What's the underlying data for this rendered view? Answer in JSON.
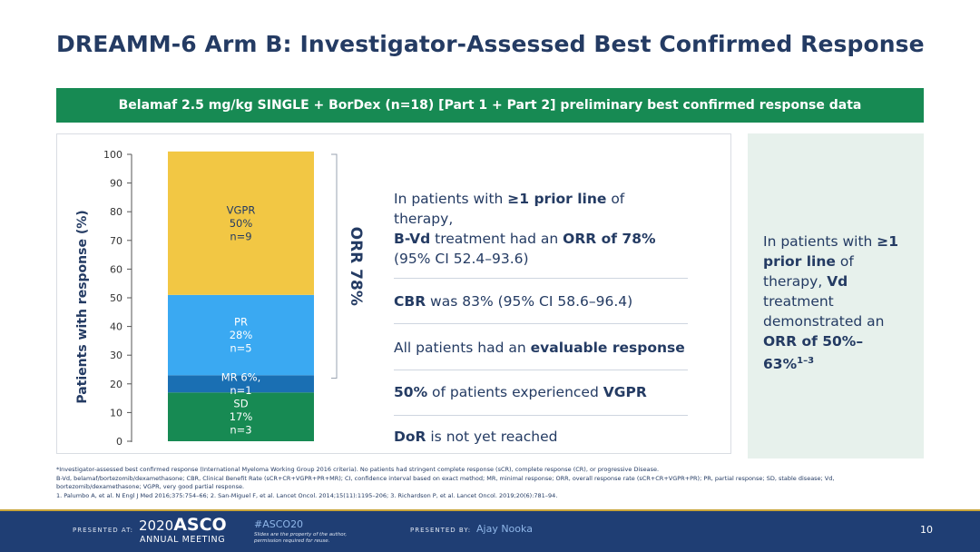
{
  "title": "DREAMM-6 Arm B: Investigator-Assessed Best Confirmed Response",
  "banner": "Belamaf 2.5 mg/kg SINGLE + BorDex (n=18) [Part 1 + Part 2] preliminary best confirmed response data",
  "chart_data": {
    "type": "bar",
    "stacked": true,
    "ylabel": "Patients with response (%)",
    "ylim": [
      0,
      100
    ],
    "yticks": [
      "0",
      "10",
      "20",
      "30",
      "40",
      "50",
      "60",
      "70",
      "80",
      "90",
      "100"
    ],
    "segments": [
      {
        "name": "SD",
        "value": 17,
        "color": "#178a53",
        "lines": [
          "SD",
          "17%",
          "n=3"
        ]
      },
      {
        "name": "MR",
        "value": 6,
        "color": "#1a6fb3",
        "lines": [
          "MR 6%,",
          "n=1"
        ]
      },
      {
        "name": "PR",
        "value": 28,
        "color": "#3aa9f2",
        "lines": [
          "PR",
          "28%",
          "n=5"
        ]
      },
      {
        "name": "VGPR",
        "value": 50,
        "color": "#f2c744",
        "lines": [
          "VGPR",
          "50%",
          "n=9"
        ]
      }
    ],
    "bracket": {
      "label": "ORR 78%",
      "from": 22,
      "to": 100
    }
  },
  "stats": [
    {
      "text": "In patients with ≥1 prior line of therapy, B-Vd treatment had an ORR of 78% (95% CI 52.4–93.6)"
    },
    {
      "text": "CBR was 83% (95% CI 58.6–96.4)"
    },
    {
      "text": "All patients had an evaluable response"
    },
    {
      "text": "50% of patients experienced VGPR"
    },
    {
      "text": "DoR is not yet reached"
    }
  ],
  "stat_parts": {
    "s1a": "In patients with ",
    "s1b": "≥1 prior line",
    "s1c": " of therapy,",
    "s1d": "B-Vd",
    "s1e": " treatment had an ",
    "s1f": "ORR of 78%",
    "s1g": "(95% CI 52.4–93.6)",
    "s2a": "CBR",
    "s2b": " was 83% (95% CI 58.6–96.4)",
    "s3a": "All patients had an ",
    "s3b": "evaluable response",
    "s4a": "50%",
    "s4b": " of patients experienced ",
    "s4c": "VGPR",
    "s5a": "DoR",
    "s5b": " is not yet reached"
  },
  "side": {
    "a": "In patients with ",
    "b": "≥1 prior line",
    "c": " of therapy, ",
    "d": "Vd",
    "e": " treatment demonstrated an ",
    "f": "ORR of 50%–63%",
    "sup": "1–3"
  },
  "footnotes": [
    "*Investigator-assessed best confirmed response (International Myeloma Working Group 2016 criteria). No patients had stringent complete response (sCR), complete response (CR), or progressive Disease.",
    "B-Vd, belamaf/bortezomib/dexamethasone; CBR, Clinical Benefit Rate (sCR+CR+VGPR+PR+MR); CI, confidence interval based on exact method; MR, minimal response; ORR, overall response rate (sCR+CR+VGPR+PR); PR, partial response; SD, stable disease; Vd,",
    "bortezomib/dexamethasone; VGPR, very good partial response.",
    "1. Palumbo A, et al. N Engl J Med 2016;375:754–66; 2. San-Miguel F, et al. Lancet Oncol. 2014;15(11):1195–206; 3. Richardson P, et al. Lancet Oncol. 2019;20(6):781–94."
  ],
  "footer": {
    "presented_at": "PRESENTED AT:",
    "asco_year": "2020",
    "asco_name": "ASCO",
    "asco_sub": "ANNUAL MEETING",
    "hashtag": "#ASCO20",
    "note": "Slides are the property of the author, permission required for reuse.",
    "presented_by": "PRESENTED BY:",
    "presenter": "Ajay Nooka",
    "page": "10"
  }
}
